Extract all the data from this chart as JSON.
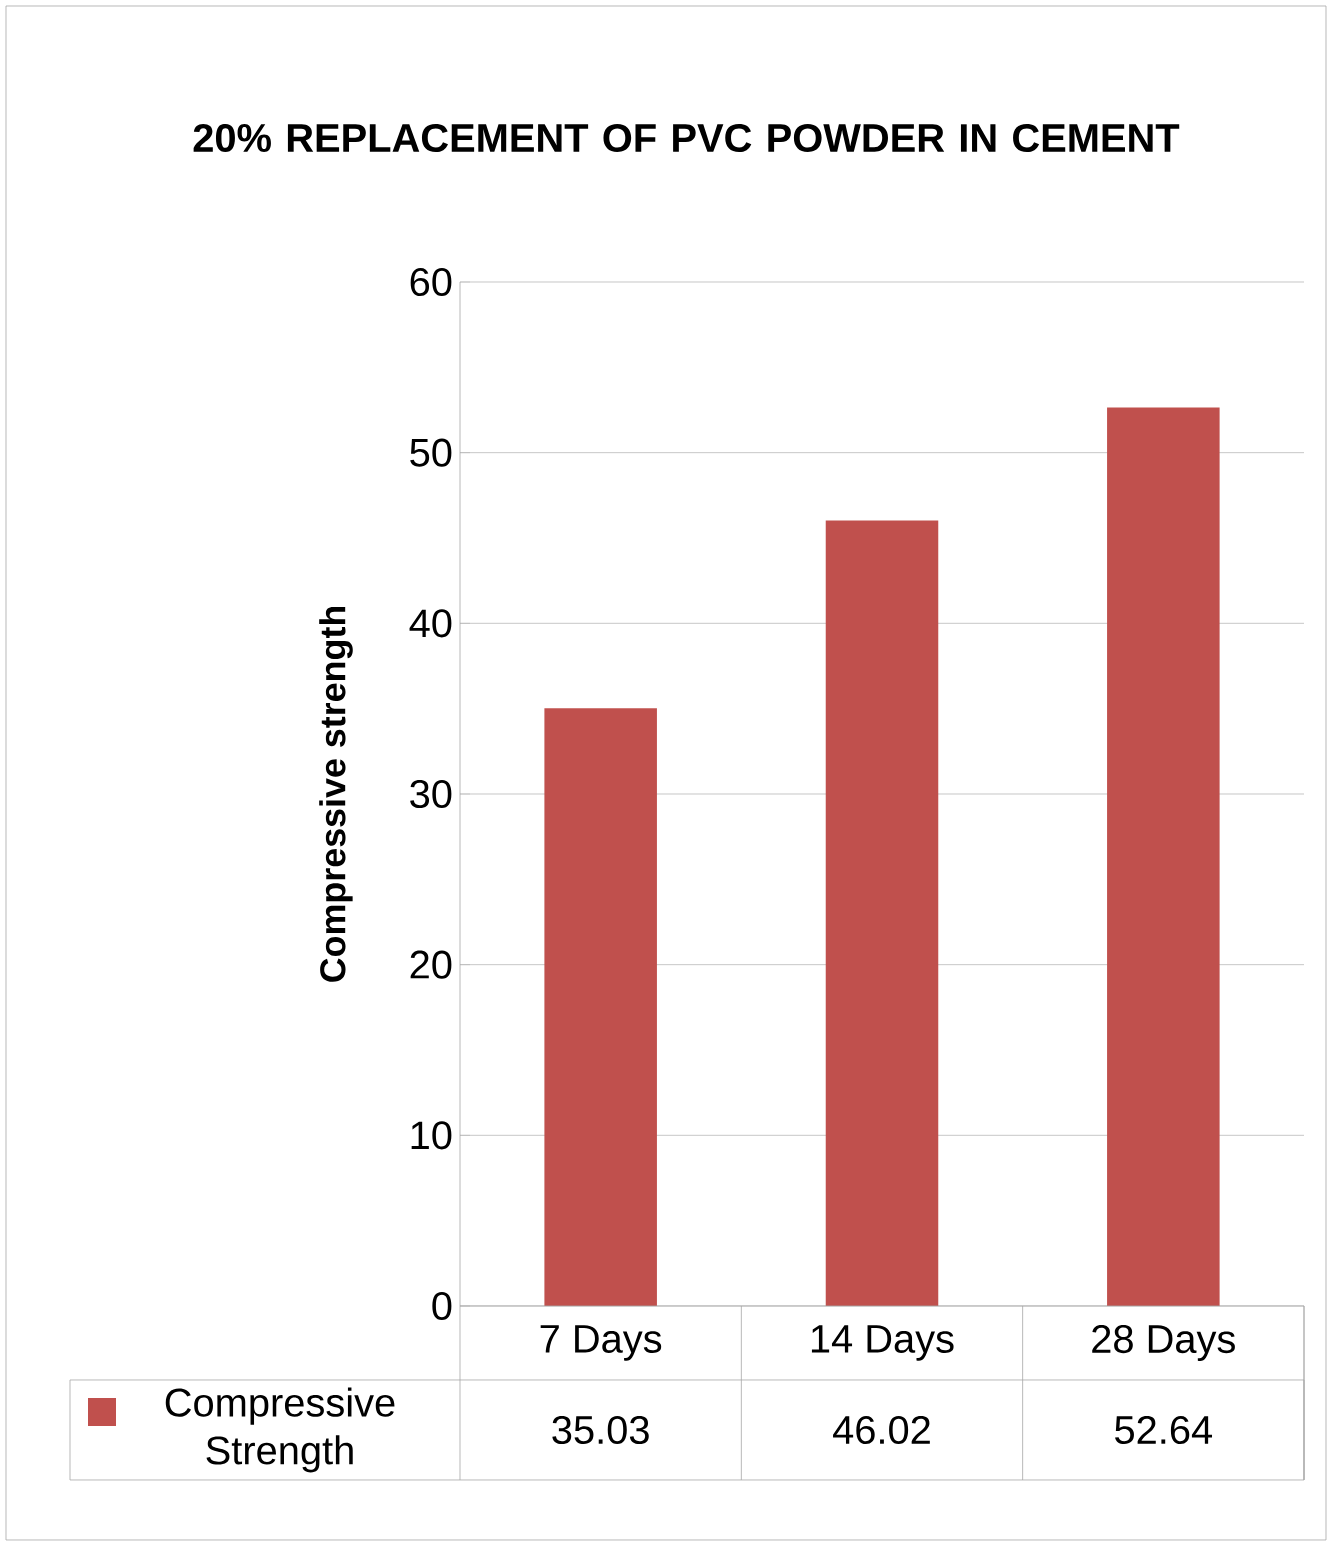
{
  "chart_data": {
    "type": "bar",
    "title": "20% REPLACEMENT OF PVC POWDER IN CEMENT",
    "ylabel": "Compressive strength",
    "categories": [
      "7 Days",
      "14 Days",
      "28 Days"
    ],
    "series": [
      {
        "name": "Compressive Strength",
        "color": "#c0504d",
        "values": [
          35.03,
          46.02,
          52.64
        ]
      }
    ],
    "ylim": [
      0,
      60
    ],
    "yticks": [
      0,
      10,
      20,
      30,
      40,
      50,
      60
    ],
    "grid": "y",
    "legend": "bottom",
    "data_labels": true
  }
}
